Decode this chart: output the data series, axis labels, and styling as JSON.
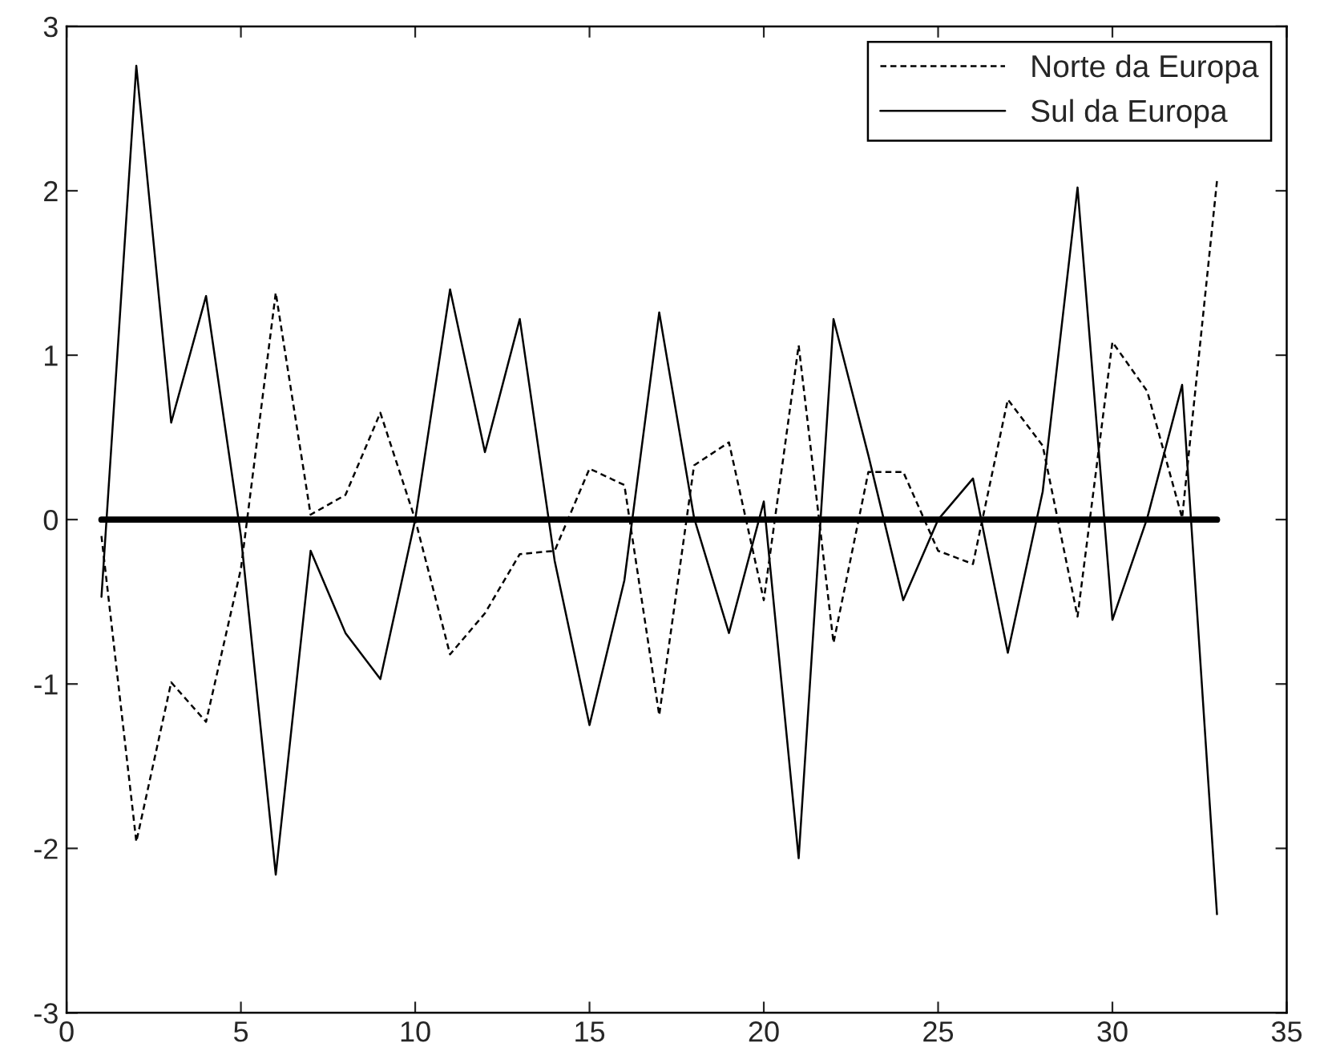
{
  "chart_data": {
    "type": "line",
    "x": [
      1,
      2,
      3,
      4,
      5,
      6,
      7,
      8,
      9,
      10,
      11,
      12,
      13,
      14,
      15,
      16,
      17,
      18,
      19,
      20,
      21,
      22,
      23,
      24,
      25,
      26,
      27,
      28,
      29,
      30,
      31,
      32,
      33
    ],
    "series": [
      {
        "name": "Norte da Europa",
        "color": "#000000",
        "line_style": "dashed",
        "values": [
          -0.1,
          -1.96,
          -0.99,
          -1.23,
          -0.3,
          1.38,
          0.03,
          0.15,
          0.65,
          0.0,
          -0.82,
          -0.57,
          -0.21,
          -0.19,
          0.31,
          0.21,
          -1.19,
          0.33,
          0.47,
          -0.49,
          1.06,
          -0.75,
          0.29,
          0.29,
          -0.19,
          -0.27,
          0.73,
          0.45,
          -0.59,
          1.08,
          0.78,
          0.01,
          2.06
        ]
      },
      {
        "name": "Sul da Europa",
        "color": "#000000",
        "line_style": "solid",
        "values": [
          -0.47,
          2.76,
          0.59,
          1.36,
          -0.1,
          -2.16,
          -0.19,
          -0.69,
          -0.97,
          0.0,
          1.4,
          0.41,
          1.22,
          -0.25,
          -1.25,
          -0.37,
          1.26,
          0.01,
          -0.69,
          0.11,
          -2.06,
          1.22,
          0.39,
          -0.49,
          0.0,
          0.25,
          -0.81,
          0.17,
          2.02,
          -0.61,
          0.01,
          0.82,
          -2.4
        ]
      },
      {
        "color": "#000000",
        "line_style": "solid",
        "x": [
          1,
          33
        ],
        "values": [
          0,
          0
        ]
      }
    ],
    "xlim": [
      0,
      35
    ],
    "xticks": [
      0,
      5,
      10,
      15,
      20,
      25,
      30,
      35
    ],
    "ylim": [
      -3,
      3
    ],
    "yticks": [
      -3,
      -2,
      -1,
      0,
      1,
      2,
      3
    ],
    "grid": false,
    "legend": "top right"
  }
}
